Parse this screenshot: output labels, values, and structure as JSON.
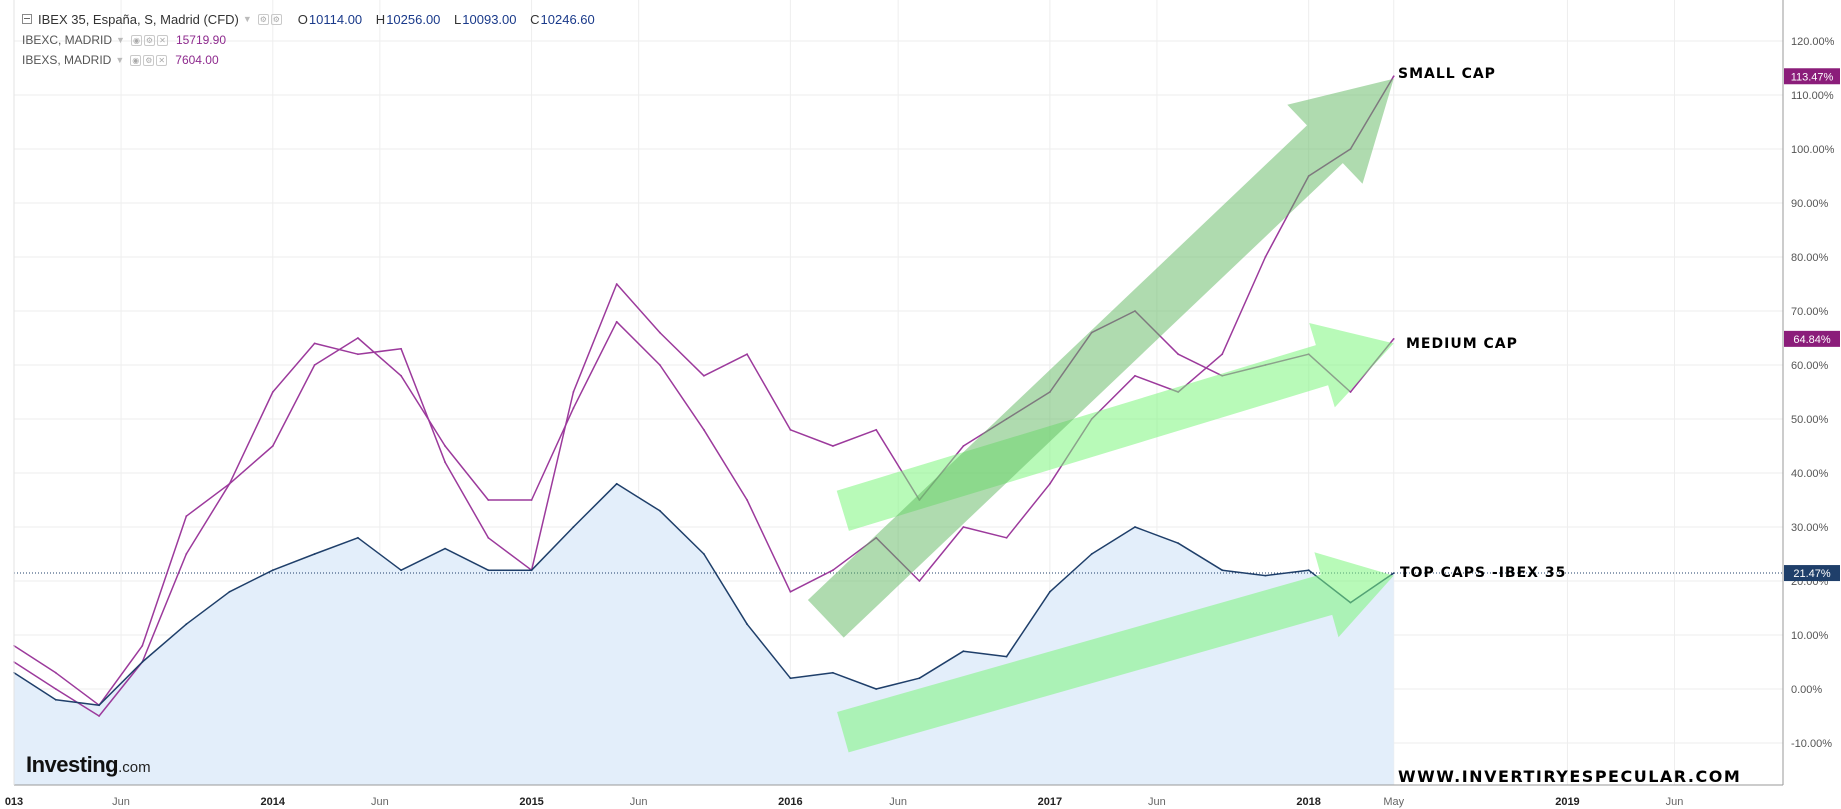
{
  "legend": {
    "main": {
      "title": "IBEX 35, España, S, Madrid (CFD)",
      "open_label": "O",
      "open": "10114.00",
      "high_label": "H",
      "high": "10256.00",
      "low_label": "L",
      "low": "10093.00",
      "close_label": "C",
      "close": "10246.60"
    },
    "overlays": [
      {
        "name": "IBEXC, MADRID",
        "value": "15719.90"
      },
      {
        "name": "IBEXS, MADRID",
        "value": "7604.00"
      }
    ]
  },
  "annotations": {
    "small_cap": "SMALL CAP",
    "medium_cap": "MEDIUM CAP",
    "top_caps": "TOP CAPS -IBEX 35",
    "website": "WWW.INVERTIRYESPECULAR.COM"
  },
  "logo": {
    "main": "Investing",
    "suffix": ".com"
  },
  "colors": {
    "ibex": "#1f3f6a",
    "ibex_fill": "#e3eefa",
    "small_cap": "#9c3a9c",
    "medium_cap": "#9c3a9c",
    "badge": "#8b1d7a",
    "badge_blue": "#1f3f6a",
    "arrow_green": "#5fb85f",
    "arrow_light": "#7ef57e",
    "grid": "#eeeeee",
    "dotted": "#1f3f6a"
  },
  "chart_data": {
    "type": "line",
    "title": "",
    "xlabel": "",
    "ylabel": "",
    "y_unit": "%",
    "ylim": [
      -12,
      128
    ],
    "y_ticks": [
      "120.00%",
      "110.00%",
      "100.00%",
      "90.00%",
      "80.00%",
      "70.00%",
      "60.00%",
      "50.00%",
      "40.00%",
      "30.00%",
      "20.00%",
      "10.00%",
      "0.00%",
      "-10.00%"
    ],
    "x_ticks": [
      {
        "label": "013",
        "date": "2013-01-01"
      },
      {
        "label": "Jun",
        "date": "2013-06-01"
      },
      {
        "label": "2014",
        "date": "2014-01-01"
      },
      {
        "label": "Jun",
        "date": "2014-06-01"
      },
      {
        "label": "2015",
        "date": "2015-01-01"
      },
      {
        "label": "Jun",
        "date": "2015-06-01"
      },
      {
        "label": "2016",
        "date": "2016-01-01"
      },
      {
        "label": "Jun",
        "date": "2016-06-01"
      },
      {
        "label": "2017",
        "date": "2017-01-01"
      },
      {
        "label": "Jun",
        "date": "2017-06-01"
      },
      {
        "label": "2018",
        "date": "2018-01-01"
      },
      {
        "label": "May",
        "date": "2018-05-01"
      },
      {
        "label": "2019",
        "date": "2019-01-01"
      },
      {
        "label": "Jun",
        "date": "2019-06-01"
      }
    ],
    "x": [
      "2013-01-01",
      "2013-03-01",
      "2013-05-01",
      "2013-07-01",
      "2013-09-01",
      "2013-11-01",
      "2014-01-01",
      "2014-03-01",
      "2014-05-01",
      "2014-07-01",
      "2014-09-01",
      "2014-11-01",
      "2015-01-01",
      "2015-03-01",
      "2015-05-01",
      "2015-07-01",
      "2015-09-01",
      "2015-11-01",
      "2016-01-01",
      "2016-03-01",
      "2016-05-01",
      "2016-07-01",
      "2016-09-01",
      "2016-11-01",
      "2017-01-01",
      "2017-03-01",
      "2017-05-01",
      "2017-07-01",
      "2017-09-01",
      "2017-11-01",
      "2018-01-01",
      "2018-03-01",
      "2018-05-01"
    ],
    "series": [
      {
        "name": "IBEXS, MADRID",
        "last_value_label": "113.47%",
        "values": [
          5,
          0,
          -5,
          5,
          25,
          38,
          45,
          60,
          65,
          58,
          45,
          35,
          35,
          52,
          68,
          60,
          48,
          35,
          18,
          22,
          28,
          20,
          30,
          28,
          38,
          50,
          58,
          55,
          62,
          80,
          95,
          100,
          113.47
        ]
      },
      {
        "name": "IBEXC, MADRID",
        "last_value_label": "64.84%",
        "values": [
          8,
          3,
          -3,
          8,
          32,
          38,
          55,
          64,
          62,
          63,
          42,
          28,
          22,
          55,
          75,
          66,
          58,
          62,
          48,
          45,
          48,
          35,
          45,
          50,
          55,
          66,
          70,
          62,
          58,
          60,
          62,
          55,
          64.84
        ]
      },
      {
        "name": "IBEX 35, España, S, Madrid (CFD)",
        "last_value_label": "21.47%",
        "values": [
          3,
          -2,
          -3,
          5,
          12,
          18,
          22,
          25,
          28,
          22,
          26,
          22,
          22,
          30,
          38,
          33,
          25,
          12,
          2,
          3,
          0,
          2,
          7,
          6,
          18,
          25,
          30,
          27,
          22,
          21,
          22,
          16,
          21.47
        ]
      }
    ],
    "reference_line": 21.47,
    "grid": true,
    "legend_position": "top-left"
  }
}
